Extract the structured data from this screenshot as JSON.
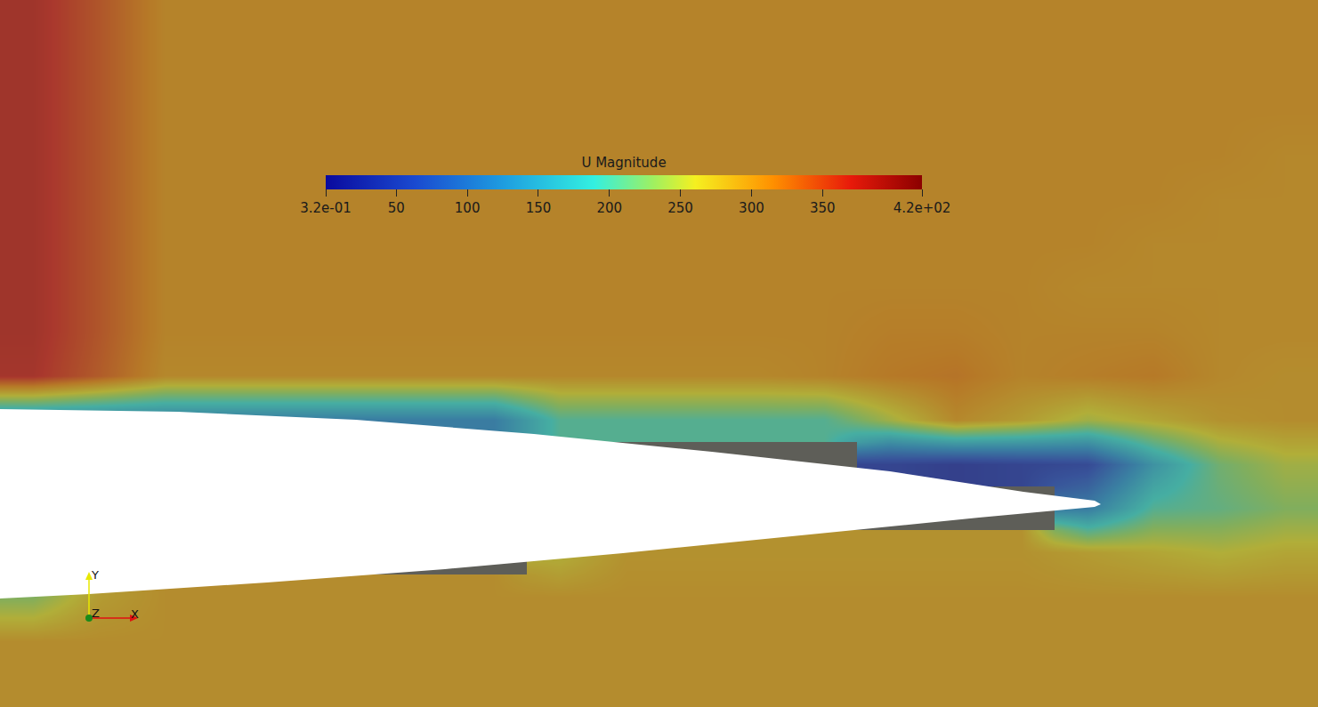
{
  "chart_data": {
    "type": "heatmap",
    "tick_labels": false,
    "colorbar": {
      "title": "U Magnitude",
      "range": [
        0.32,
        420
      ],
      "ticks": [
        {
          "value": 0.32,
          "label": "3.2e-01"
        },
        50,
        100,
        150,
        200,
        250,
        300,
        350,
        {
          "value": 420,
          "label": "4.2e+02"
        }
      ]
    },
    "annotations": [
      "Y",
      "Z",
      "X"
    ],
    "cells": [
      [
        380,
        345,
        305,
        305,
        305,
        305,
        305,
        305,
        305,
        305,
        305,
        305,
        305,
        305,
        305,
        305,
        305,
        305,
        305,
        305
      ],
      [
        380,
        345,
        305,
        305,
        305,
        305,
        305,
        305,
        305,
        305,
        305,
        305,
        305,
        305,
        305,
        305,
        305,
        305,
        305,
        305
      ],
      [
        380,
        345,
        305,
        305,
        305,
        305,
        305,
        305,
        305,
        305,
        305,
        305,
        305,
        305,
        305,
        305,
        305,
        305,
        305,
        305
      ],
      [
        380,
        345,
        305,
        305,
        305,
        305,
        305,
        305,
        305,
        305,
        305,
        305,
        305,
        305,
        305,
        305,
        305,
        305,
        305,
        300
      ],
      [
        380,
        345,
        305,
        305,
        305,
        305,
        305,
        305,
        305,
        305,
        305,
        305,
        305,
        305,
        305,
        305,
        305,
        305,
        300,
        300
      ],
      [
        380,
        345,
        305,
        305,
        305,
        305,
        305,
        305,
        305,
        305,
        305,
        305,
        305,
        305,
        305,
        305,
        305,
        300,
        300,
        300
      ],
      [
        380,
        345,
        305,
        305,
        305,
        305,
        305,
        305,
        305,
        305,
        305,
        305,
        305,
        305,
        305,
        305,
        300,
        300,
        300,
        300
      ],
      [
        380,
        345,
        305,
        305,
        305,
        305,
        305,
        305,
        305,
        305,
        305,
        305,
        305,
        310,
        310,
        305,
        305,
        305,
        300,
        300
      ],
      [
        375,
        340,
        300,
        300,
        300,
        300,
        300,
        300,
        300,
        300,
        300,
        300,
        305,
        315,
        320,
        305,
        310,
        315,
        300,
        295
      ],
      [
        120,
        120,
        120,
        120,
        120,
        120,
        120,
        120,
        200,
        200,
        200,
        200,
        200,
        250,
        300,
        280,
        250,
        270,
        290,
        295
      ],
      [
        null,
        null,
        null,
        null,
        null,
        null,
        null,
        null,
        null,
        null,
        null,
        null,
        null,
        40,
        30,
        40,
        50,
        150,
        220,
        250
      ],
      [
        null,
        null,
        null,
        null,
        null,
        null,
        null,
        null,
        null,
        null,
        null,
        null,
        null,
        null,
        null,
        null,
        120,
        200,
        210,
        230
      ],
      [
        null,
        null,
        null,
        null,
        null,
        null,
        null,
        null,
        260,
        290,
        290,
        290,
        290,
        290,
        290,
        290,
        280,
        270,
        260,
        270
      ],
      [
        230,
        280,
        295,
        295,
        295,
        295,
        295,
        295,
        295,
        295,
        295,
        295,
        295,
        295,
        295,
        295,
        295,
        295,
        295,
        295
      ],
      [
        295,
        295,
        295,
        295,
        295,
        295,
        295,
        295,
        295,
        295,
        295,
        295,
        295,
        295,
        295,
        295,
        295,
        295,
        295,
        295
      ],
      [
        295,
        295,
        295,
        295,
        295,
        295,
        295,
        295,
        295,
        295,
        295,
        295,
        295,
        295,
        295,
        295,
        295,
        295,
        295,
        295
      ]
    ]
  }
}
